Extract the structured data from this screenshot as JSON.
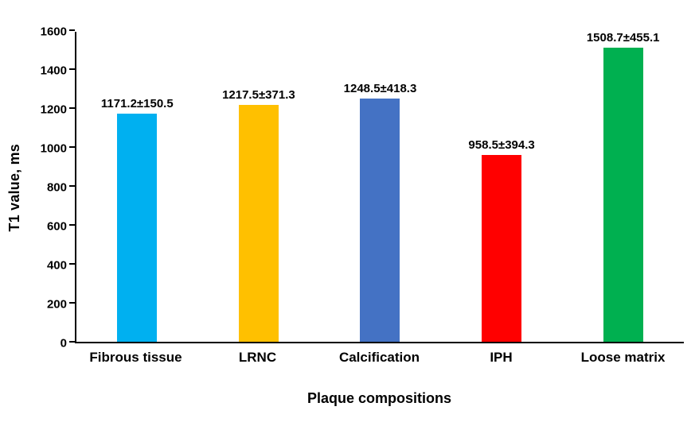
{
  "chart_data": {
    "type": "bar",
    "title": "",
    "xlabel": "Plaque compositions",
    "ylabel": "T1 value, ms",
    "categories": [
      "Fibrous tissue",
      "LRNC",
      "Calcification",
      "IPH",
      "Loose matrix"
    ],
    "values": [
      1171.2,
      1217.5,
      1248.5,
      958.5,
      1508.7
    ],
    "errors": [
      150.5,
      371.3,
      418.3,
      394.3,
      455.1
    ],
    "bar_labels": [
      "1171.2±150.5",
      "1217.5±371.3",
      "1248.5±418.3",
      "958.5±394.3",
      "1508.7±455.1"
    ],
    "bar_colors": [
      "#00b0f0",
      "#ffc000",
      "#4472c4",
      "#ff0000",
      "#00b050"
    ],
    "ylim": [
      0,
      1600
    ],
    "yticks": [
      0,
      200,
      400,
      600,
      800,
      1000,
      1200,
      1400,
      1600
    ],
    "grid": "off",
    "legend": "none",
    "background": "#ffffff"
  }
}
